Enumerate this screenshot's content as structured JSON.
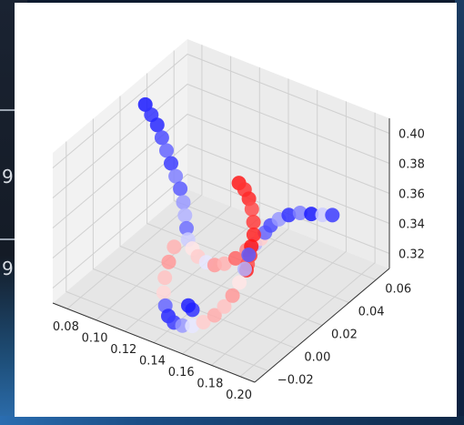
{
  "background": {
    "left_digits": [
      "9",
      "9"
    ]
  },
  "chart_data": {
    "type": "scatter",
    "projection": "3d",
    "title": "",
    "xlabel": "",
    "ylabel": "",
    "zlabel": "",
    "xlim": [
      0.07,
      0.21
    ],
    "ylim": [
      -0.03,
      0.07
    ],
    "zlim": [
      0.31,
      0.41
    ],
    "x_ticks": [
      "0.08",
      "0.10",
      "0.12",
      "0.14",
      "0.16",
      "0.18",
      "0.20"
    ],
    "y_ticks": [
      "−0.02",
      "0.00",
      "0.02",
      "0.04",
      "0.06"
    ],
    "z_ticks": [
      "0.32",
      "0.34",
      "0.36",
      "0.38",
      "0.40"
    ],
    "grid": true,
    "colormap": "bwr",
    "colors": {
      "low": "#0000ff",
      "mid": "#f0f0f0",
      "high": "#ff0000"
    },
    "points": [
      [
        0.08,
        0.028,
        0.402,
        0.05
      ],
      [
        0.086,
        0.026,
        0.399,
        0.1
      ],
      [
        0.092,
        0.024,
        0.396,
        0.08
      ],
      [
        0.098,
        0.021,
        0.392,
        0.15
      ],
      [
        0.104,
        0.018,
        0.388,
        0.2
      ],
      [
        0.11,
        0.015,
        0.384,
        0.12
      ],
      [
        0.116,
        0.012,
        0.38,
        0.25
      ],
      [
        0.121,
        0.01,
        0.375,
        0.18
      ],
      [
        0.125,
        0.008,
        0.369,
        0.3
      ],
      [
        0.128,
        0.006,
        0.363,
        0.35
      ],
      [
        0.131,
        0.004,
        0.357,
        0.22
      ],
      [
        0.133,
        0.003,
        0.351,
        0.4
      ],
      [
        0.135,
        0.004,
        0.345,
        0.55
      ],
      [
        0.137,
        0.006,
        0.339,
        0.6
      ],
      [
        0.14,
        0.009,
        0.334,
        0.45
      ],
      [
        0.143,
        0.012,
        0.331,
        0.7
      ],
      [
        0.146,
        0.016,
        0.33,
        0.65
      ],
      [
        0.15,
        0.02,
        0.332,
        0.8
      ],
      [
        0.154,
        0.024,
        0.336,
        0.75
      ],
      [
        0.158,
        0.026,
        0.34,
        0.35
      ],
      [
        0.161,
        0.027,
        0.344,
        0.6
      ],
      [
        0.163,
        0.028,
        0.348,
        0.2
      ],
      [
        0.165,
        0.03,
        0.352,
        0.15
      ],
      [
        0.168,
        0.033,
        0.355,
        0.3
      ],
      [
        0.172,
        0.036,
        0.357,
        0.1
      ],
      [
        0.177,
        0.039,
        0.358,
        0.25
      ],
      [
        0.182,
        0.042,
        0.357,
        0.05
      ],
      [
        0.187,
        0.045,
        0.356,
        0.4
      ],
      [
        0.191,
        0.048,
        0.355,
        0.12
      ],
      [
        0.143,
        0.03,
        0.372,
        0.95
      ],
      [
        0.146,
        0.031,
        0.368,
        0.9
      ],
      [
        0.149,
        0.031,
        0.363,
        0.92
      ],
      [
        0.152,
        0.03,
        0.358,
        0.85
      ],
      [
        0.155,
        0.028,
        0.352,
        0.88
      ],
      [
        0.158,
        0.025,
        0.347,
        0.93
      ],
      [
        0.16,
        0.021,
        0.343,
        0.96
      ],
      [
        0.162,
        0.018,
        0.34,
        0.9
      ],
      [
        0.164,
        0.014,
        0.338,
        0.85
      ],
      [
        0.166,
        0.011,
        0.337,
        0.94
      ],
      [
        0.128,
        -0.002,
        0.348,
        0.65
      ],
      [
        0.128,
        -0.006,
        0.341,
        0.7
      ],
      [
        0.129,
        -0.01,
        0.334,
        0.62
      ],
      [
        0.131,
        -0.013,
        0.327,
        0.58
      ],
      [
        0.134,
        -0.015,
        0.321,
        0.2
      ],
      [
        0.137,
        -0.016,
        0.316,
        0.08
      ],
      [
        0.14,
        -0.015,
        0.312,
        0.12
      ],
      [
        0.144,
        -0.013,
        0.31,
        0.3
      ],
      [
        0.148,
        -0.01,
        0.309,
        0.45
      ],
      [
        0.152,
        -0.006,
        0.31,
        0.6
      ],
      [
        0.156,
        -0.002,
        0.313,
        0.66
      ],
      [
        0.159,
        0.002,
        0.317,
        0.62
      ],
      [
        0.161,
        0.006,
        0.322,
        0.7
      ],
      [
        0.162,
        0.01,
        0.328,
        0.55
      ],
      [
        0.162,
        0.014,
        0.334,
        0.35
      ],
      [
        0.161,
        0.018,
        0.34,
        0.18
      ],
      [
        0.15,
        -0.012,
        0.322,
        0.1
      ],
      [
        0.149,
        -0.014,
        0.326,
        0.06
      ]
    ]
  }
}
